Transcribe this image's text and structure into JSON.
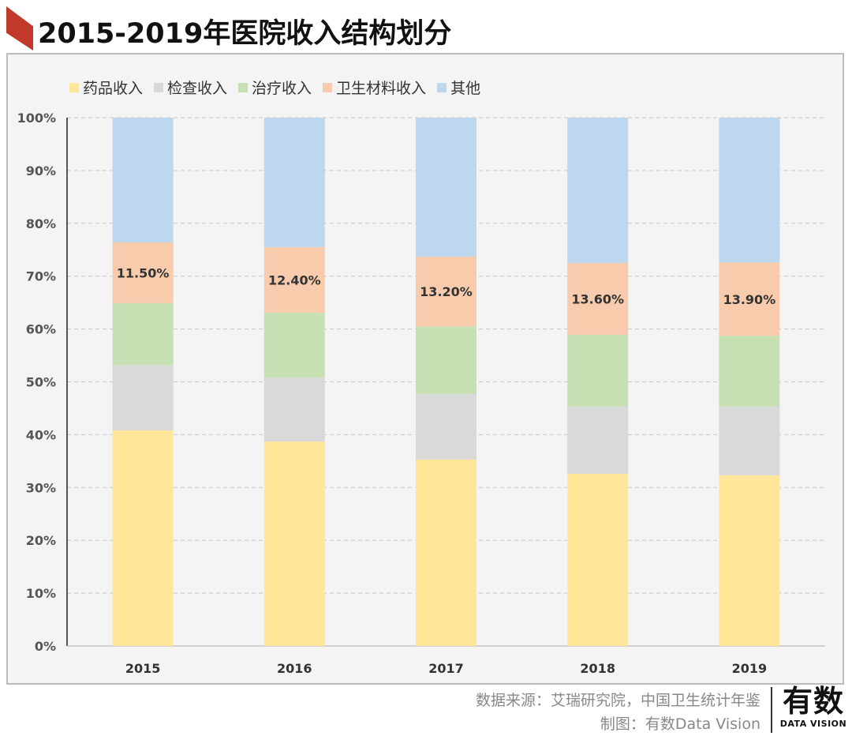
{
  "title": "2015-2019年医院收入结构划分",
  "colors": {
    "accent": "#c0392b",
    "drug": "#ffe699",
    "exam": "#d9d9d9",
    "treatment": "#c6e0b4",
    "material": "#f8cbad",
    "other": "#bdd7ee"
  },
  "source": {
    "line1": "数据来源：艾瑞研究院，中国卫生统计年鉴",
    "line2": "制图：有数Data Vision"
  },
  "brand": {
    "logo": "有数",
    "sub": "DATA VISION"
  },
  "chart_data": {
    "type": "bar",
    "stacked": true,
    "title": "2015-2019年医院收入结构划分",
    "categories": [
      "2015",
      "2016",
      "2017",
      "2018",
      "2019"
    ],
    "ylim": [
      0,
      100
    ],
    "yticks": [
      "0%",
      "10%",
      "20%",
      "30%",
      "40%",
      "50%",
      "60%",
      "70%",
      "80%",
      "90%",
      "100%"
    ],
    "grid": true,
    "legend_position": "top-left",
    "series": [
      {
        "name": "药品收入",
        "color": "#ffe699",
        "values": [
          40.8,
          38.7,
          35.3,
          32.6,
          32.3
        ]
      },
      {
        "name": "检查收入",
        "color": "#d9d9d9",
        "values": [
          12.3,
          12.1,
          12.4,
          12.7,
          13.0
        ]
      },
      {
        "name": "治疗收入",
        "color": "#c6e0b4",
        "values": [
          11.8,
          12.3,
          12.8,
          13.6,
          13.4
        ]
      },
      {
        "name": "卫生材料收入",
        "color": "#f8cbad",
        "values": [
          11.5,
          12.4,
          13.2,
          13.6,
          13.9
        ]
      },
      {
        "name": "其他",
        "color": "#bdd7ee",
        "values": [
          23.6,
          24.5,
          26.3,
          27.5,
          27.4
        ]
      }
    ],
    "data_labels": {
      "series": "卫生材料收入",
      "labels": [
        "11.50%",
        "12.40%",
        "13.20%",
        "13.60%",
        "13.90%"
      ]
    }
  }
}
